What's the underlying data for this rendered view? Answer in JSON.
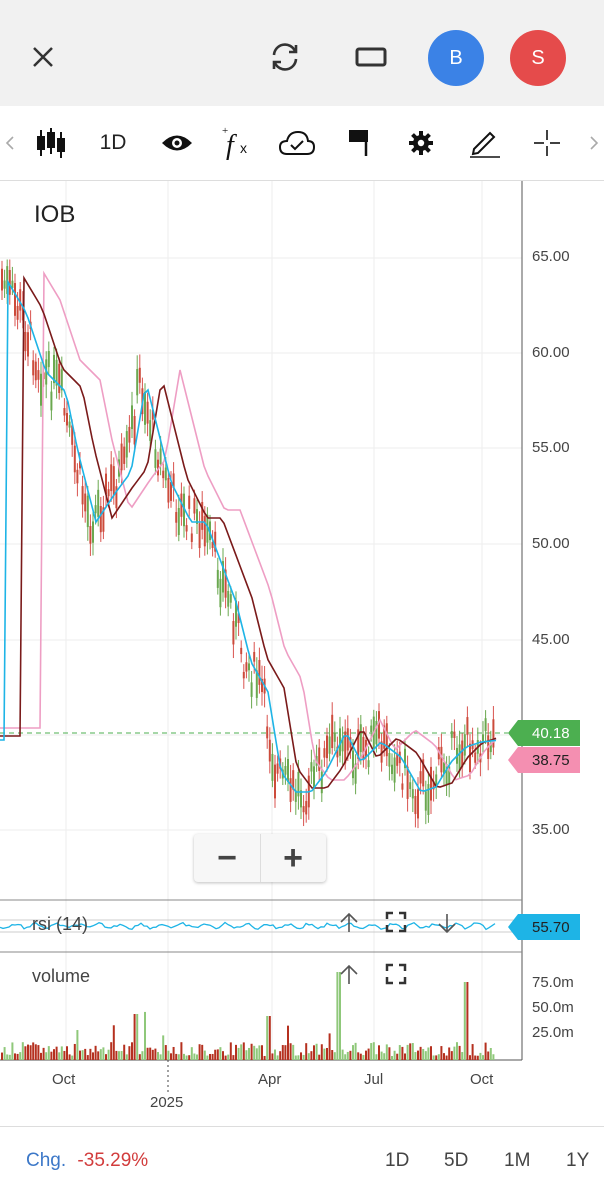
{
  "header": {
    "close_icon": "close-icon",
    "refresh_icon": "refresh-icon",
    "window_icon": "window-icon",
    "avatar_b": {
      "letter": "B",
      "color": "#3b82e6"
    },
    "avatar_s": {
      "letter": "S",
      "color": "#e54b4b"
    }
  },
  "toolbar": {
    "interval": "1D",
    "icons": [
      "chevron-left-icon",
      "candlestick-icon",
      "eye-icon",
      "function-icon",
      "cloud-icon",
      "flag-icon",
      "gear-icon",
      "pencil-icon",
      "crosshair-icon",
      "chevron-right-icon"
    ]
  },
  "chart": {
    "symbol": "IOB",
    "price_axis": [
      "65.00",
      "60.00",
      "55.00",
      "50.00",
      "45.00",
      "35.00"
    ],
    "last_price": "40.18",
    "ma_value": "38.75",
    "last_price_color": "#4caf50",
    "ma_color": "#f48fb1"
  },
  "zoom": {
    "minus": "−",
    "plus": "+"
  },
  "rsi": {
    "label": "rsi (14)",
    "value": "55.70",
    "color": "#1eb4e6"
  },
  "volume": {
    "label": "volume",
    "axis": [
      "75.0m",
      "50.0m",
      "25.0m"
    ]
  },
  "x_axis": {
    "labels": [
      "Oct",
      "2025",
      "Apr",
      "Jul",
      "Oct"
    ]
  },
  "footer": {
    "chg_label": "Chg.",
    "chg_value": "-35.29%",
    "chg_color": "#d23c3c",
    "ranges": [
      "1D",
      "5D",
      "1M",
      "1Y"
    ]
  }
}
